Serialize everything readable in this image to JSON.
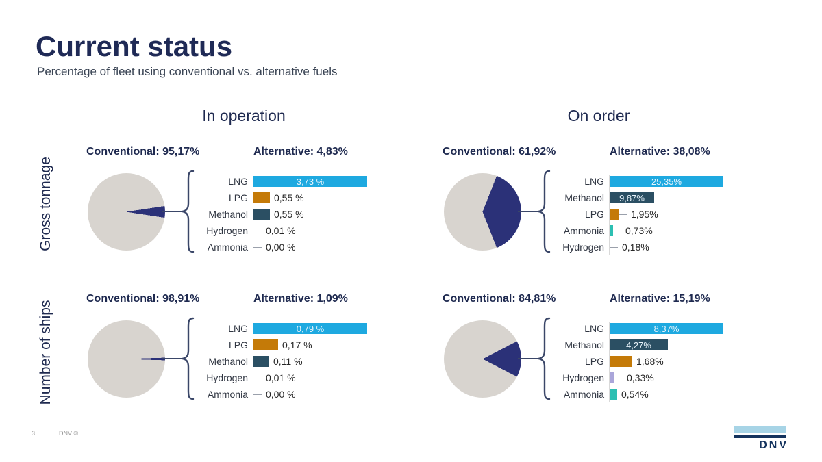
{
  "slide": {
    "title": "Current status",
    "subtitle": "Percentage of fleet using conventional vs. alternative fuels",
    "page_number": "3",
    "footer_copyright": "DNV ©",
    "logo_text": "DNV"
  },
  "column_headers": [
    {
      "label": "In operation"
    },
    {
      "label": "On order"
    }
  ],
  "row_headers": [
    {
      "label": "Gross tonnage"
    },
    {
      "label": "Number of ships"
    }
  ],
  "colors": {
    "title_navy": "#1f2a56",
    "pie_gray": "#d8d4cf",
    "pie_navy": "#2b3178",
    "lng": "#1ea9e0",
    "lpg": "#c47a08",
    "methanol": "#2b4f63",
    "hydrogen": "#aaa6da",
    "ammonia": "#2cbfb2",
    "logo_light_blue": "#a7d4e6",
    "logo_navy": "#14335e"
  },
  "chart_data": [
    {
      "id": "gross-tonnage-in-operation",
      "row": "Gross tonnage",
      "column": "In operation",
      "type": "pie",
      "conventional_label": "Conventional: 95,17%",
      "alternative_label": "Alternative: 4,83%",
      "pie": {
        "conventional_pct": 95.17,
        "alternative_pct": 4.83,
        "conventional_color": "#d8d4cf",
        "alternative_color": "#2b3178"
      },
      "bars_type": "bar",
      "bars": [
        {
          "fuel": "LNG",
          "value": 3.73,
          "value_label": "3,73 %",
          "color_key": "lng",
          "text_inside": true,
          "leader_dash": false
        },
        {
          "fuel": "LPG",
          "value": 0.55,
          "value_label": "0,55 %",
          "color_key": "lpg",
          "text_inside": false,
          "leader_dash": false
        },
        {
          "fuel": "Methanol",
          "value": 0.55,
          "value_label": "0,55 %",
          "color_key": "methanol",
          "text_inside": false,
          "leader_dash": false
        },
        {
          "fuel": "Hydrogen",
          "value": 0.01,
          "value_label": "0,01 %",
          "color_key": "hydrogen",
          "text_inside": false,
          "leader_dash": true
        },
        {
          "fuel": "Ammonia",
          "value": 0.0,
          "value_label": "0,00 %",
          "color_key": "ammonia",
          "text_inside": false,
          "leader_dash": true
        }
      ]
    },
    {
      "id": "gross-tonnage-on-order",
      "row": "Gross tonnage",
      "column": "On order",
      "type": "pie",
      "conventional_label": "Conventional: 61,92%",
      "alternative_label": "Alternative: 38,08%",
      "pie": {
        "conventional_pct": 61.92,
        "alternative_pct": 38.08,
        "conventional_color": "#d8d4cf",
        "alternative_color": "#2b3178"
      },
      "bars_type": "bar",
      "bars": [
        {
          "fuel": "LNG",
          "value": 25.35,
          "value_label": "25,35%",
          "color_key": "lng",
          "text_inside": true,
          "leader_dash": false
        },
        {
          "fuel": "Methanol",
          "value": 9.87,
          "value_label": "9,87%",
          "color_key": "methanol",
          "text_inside": true,
          "leader_dash": false
        },
        {
          "fuel": "LPG",
          "value": 1.95,
          "value_label": "1,95%",
          "color_key": "lpg",
          "text_inside": false,
          "leader_dash": true
        },
        {
          "fuel": "Ammonia",
          "value": 0.73,
          "value_label": "0,73%",
          "color_key": "ammonia",
          "text_inside": false,
          "leader_dash": true
        },
        {
          "fuel": "Hydrogen",
          "value": 0.18,
          "value_label": "0,18%",
          "color_key": "hydrogen",
          "text_inside": false,
          "leader_dash": true
        }
      ]
    },
    {
      "id": "number-of-ships-in-operation",
      "row": "Number of ships",
      "column": "In operation",
      "type": "pie",
      "conventional_label": "Conventional: 98,91%",
      "alternative_label": "Alternative: 1,09%",
      "pie": {
        "conventional_pct": 98.91,
        "alternative_pct": 1.09,
        "conventional_color": "#d8d4cf",
        "alternative_color": "#2b3178"
      },
      "bars_type": "bar",
      "bars": [
        {
          "fuel": "LNG",
          "value": 0.79,
          "value_label": "0,79 %",
          "color_key": "lng",
          "text_inside": true,
          "leader_dash": false
        },
        {
          "fuel": "LPG",
          "value": 0.17,
          "value_label": "0,17 %",
          "color_key": "lpg",
          "text_inside": false,
          "leader_dash": false
        },
        {
          "fuel": "Methanol",
          "value": 0.11,
          "value_label": "0,11 %",
          "color_key": "methanol",
          "text_inside": false,
          "leader_dash": false
        },
        {
          "fuel": "Hydrogen",
          "value": 0.01,
          "value_label": "0,01 %",
          "color_key": "hydrogen",
          "text_inside": false,
          "leader_dash": true
        },
        {
          "fuel": "Ammonia",
          "value": 0.0,
          "value_label": "0,00 %",
          "color_key": "ammonia",
          "text_inside": false,
          "leader_dash": true
        }
      ]
    },
    {
      "id": "number-of-ships-on-order",
      "row": "Number of ships",
      "column": "On order",
      "type": "pie",
      "conventional_label": "Conventional: 84,81%",
      "alternative_label": "Alternative: 15,19%",
      "pie": {
        "conventional_pct": 84.81,
        "alternative_pct": 15.19,
        "conventional_color": "#d8d4cf",
        "alternative_color": "#2b3178"
      },
      "bars_type": "bar",
      "bars": [
        {
          "fuel": "LNG",
          "value": 8.37,
          "value_label": "8,37%",
          "color_key": "lng",
          "text_inside": true,
          "leader_dash": false
        },
        {
          "fuel": "Methanol",
          "value": 4.27,
          "value_label": "4,27%",
          "color_key": "methanol",
          "text_inside": true,
          "leader_dash": false
        },
        {
          "fuel": "LPG",
          "value": 1.68,
          "value_label": "1,68%",
          "color_key": "lpg",
          "text_inside": false,
          "leader_dash": false
        },
        {
          "fuel": "Hydrogen",
          "value": 0.33,
          "value_label": "0,33%",
          "color_key": "hydrogen",
          "text_inside": false,
          "leader_dash": true
        },
        {
          "fuel": "Ammonia",
          "value": 0.54,
          "value_label": "0,54%",
          "color_key": "ammonia",
          "text_inside": false,
          "leader_dash": false
        }
      ]
    }
  ]
}
